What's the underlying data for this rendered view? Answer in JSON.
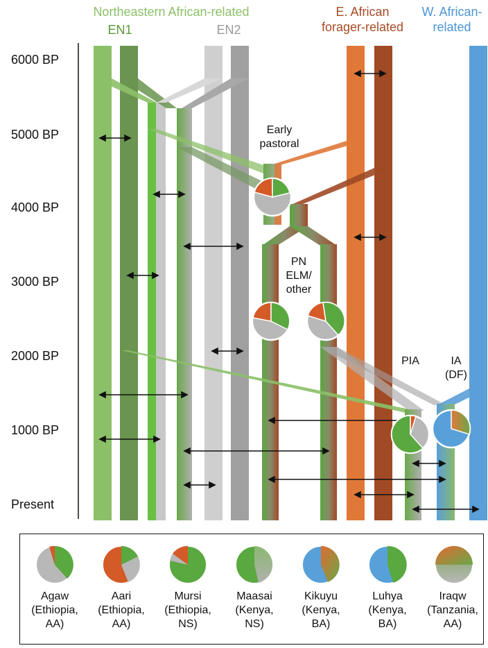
{
  "headers": {
    "ne_african": "Northeastern African-related",
    "en1": "EN1",
    "en2": "EN2",
    "e_african_1": "E. African",
    "e_african_2": "forager-related",
    "w_african_1": "W. African-",
    "w_african_2": "related"
  },
  "time_axis": [
    "6000 BP",
    "5000 BP",
    "4000 BP",
    "3000 BP",
    "2000 BP",
    "1000 BP",
    "Present"
  ],
  "labels": {
    "early_pastoral_1": "Early",
    "early_pastoral_2": "pastoral",
    "pn_1": "PN",
    "pn_2": "ELM/",
    "pn_3": "other",
    "pia": "PIA",
    "ia_1": "IA",
    "ia_2": "(DF)"
  },
  "colors": {
    "en1_light": "#8cc068",
    "en1_dark": "#6a9450",
    "en1_bright": "#6abf45",
    "en2_light": "#cfcfcf",
    "en2_dark": "#a0a0a0",
    "forager_light": "#e07838",
    "forager_dark": "#a04a26",
    "west": "#5a9fd8",
    "pie_orange": "#d45a28",
    "pie_green": "#5aa840",
    "pie_gray": "#b8b8b8",
    "pie_blue": "#58a0d8"
  },
  "legend": [
    {
      "name": "Agaw",
      "country": "(Ethiopia,",
      "family": "AA)"
    },
    {
      "name": "Aari",
      "country": "(Ethiopia,",
      "family": "AA)"
    },
    {
      "name": "Mursi",
      "country": "(Ethiopia,",
      "family": "NS)"
    },
    {
      "name": "Maasai",
      "country": "(Kenya,",
      "family": "NS)"
    },
    {
      "name": "Kikuyu",
      "country": "(Kenya,",
      "family": "BA)"
    },
    {
      "name": "Luhya",
      "country": "(Kenya,",
      "family": "BA)"
    },
    {
      "name": "Iraqw",
      "country": "(Tanzania,",
      "family": "AA)"
    }
  ]
}
